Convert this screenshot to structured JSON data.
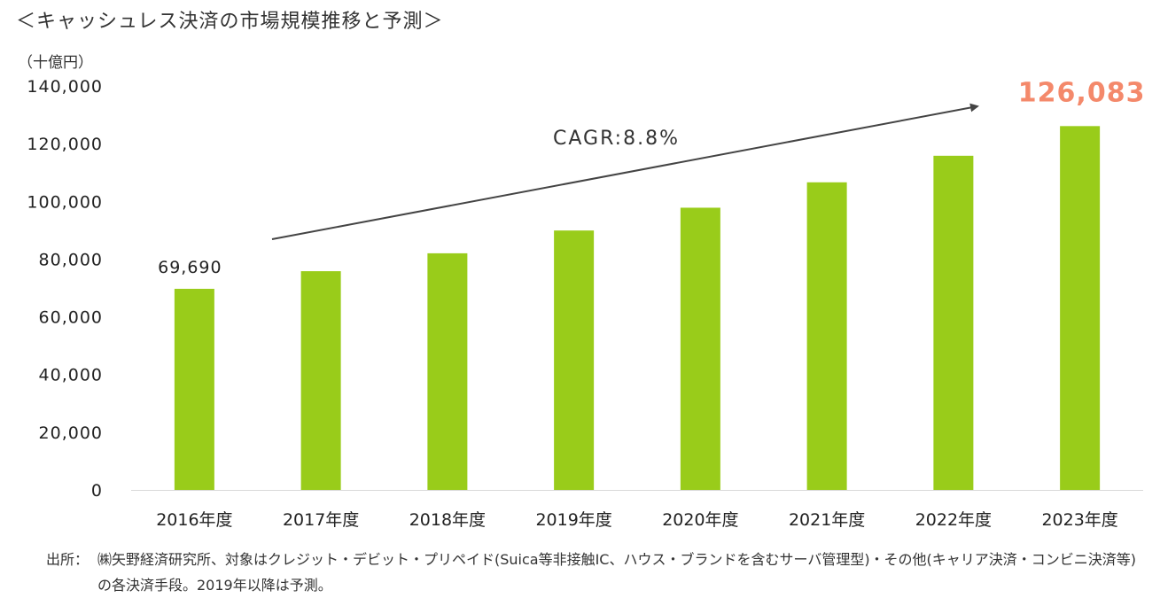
{
  "title": "＜キャッシュレス決済の市場規模推移と予測＞",
  "unit": "（十億円）",
  "chart_data": {
    "type": "bar",
    "categories": [
      "2016年度",
      "2017年度",
      "2018年度",
      "2019年度",
      "2020年度",
      "2021年度",
      "2022年度",
      "2023年度"
    ],
    "values": [
      69690,
      75800,
      82000,
      89900,
      97800,
      106600,
      115800,
      126083
    ],
    "ylim": [
      0,
      140000
    ],
    "yticks": [
      "0",
      "20,000",
      "40,000",
      "60,000",
      "80,000",
      "100,000",
      "120,000",
      "140,000"
    ],
    "ytick_values": [
      0,
      20000,
      40000,
      60000,
      80000,
      100000,
      120000,
      140000
    ],
    "data_labels": [
      {
        "index": 0,
        "text": "69,690"
      },
      {
        "index": 7,
        "text": "126,083"
      }
    ],
    "annotation": "CAGR:8.8%",
    "grid": false,
    "legend": "none",
    "colors": {
      "bar": "#99cc1a",
      "highlight_label": "#f4896b",
      "arrow": "#444444",
      "axis": "#d9d9d9"
    }
  },
  "source": {
    "label": "出所：",
    "text": "㈱矢野経済研究所、対象はクレジット・デビット・プリペイド(Suica等非接触IC、ハウス・ブランドを含むサーバ管理型)・その他(キャリア決済・コンビニ決済等)の各決済手段。2019年以降は予測。"
  }
}
